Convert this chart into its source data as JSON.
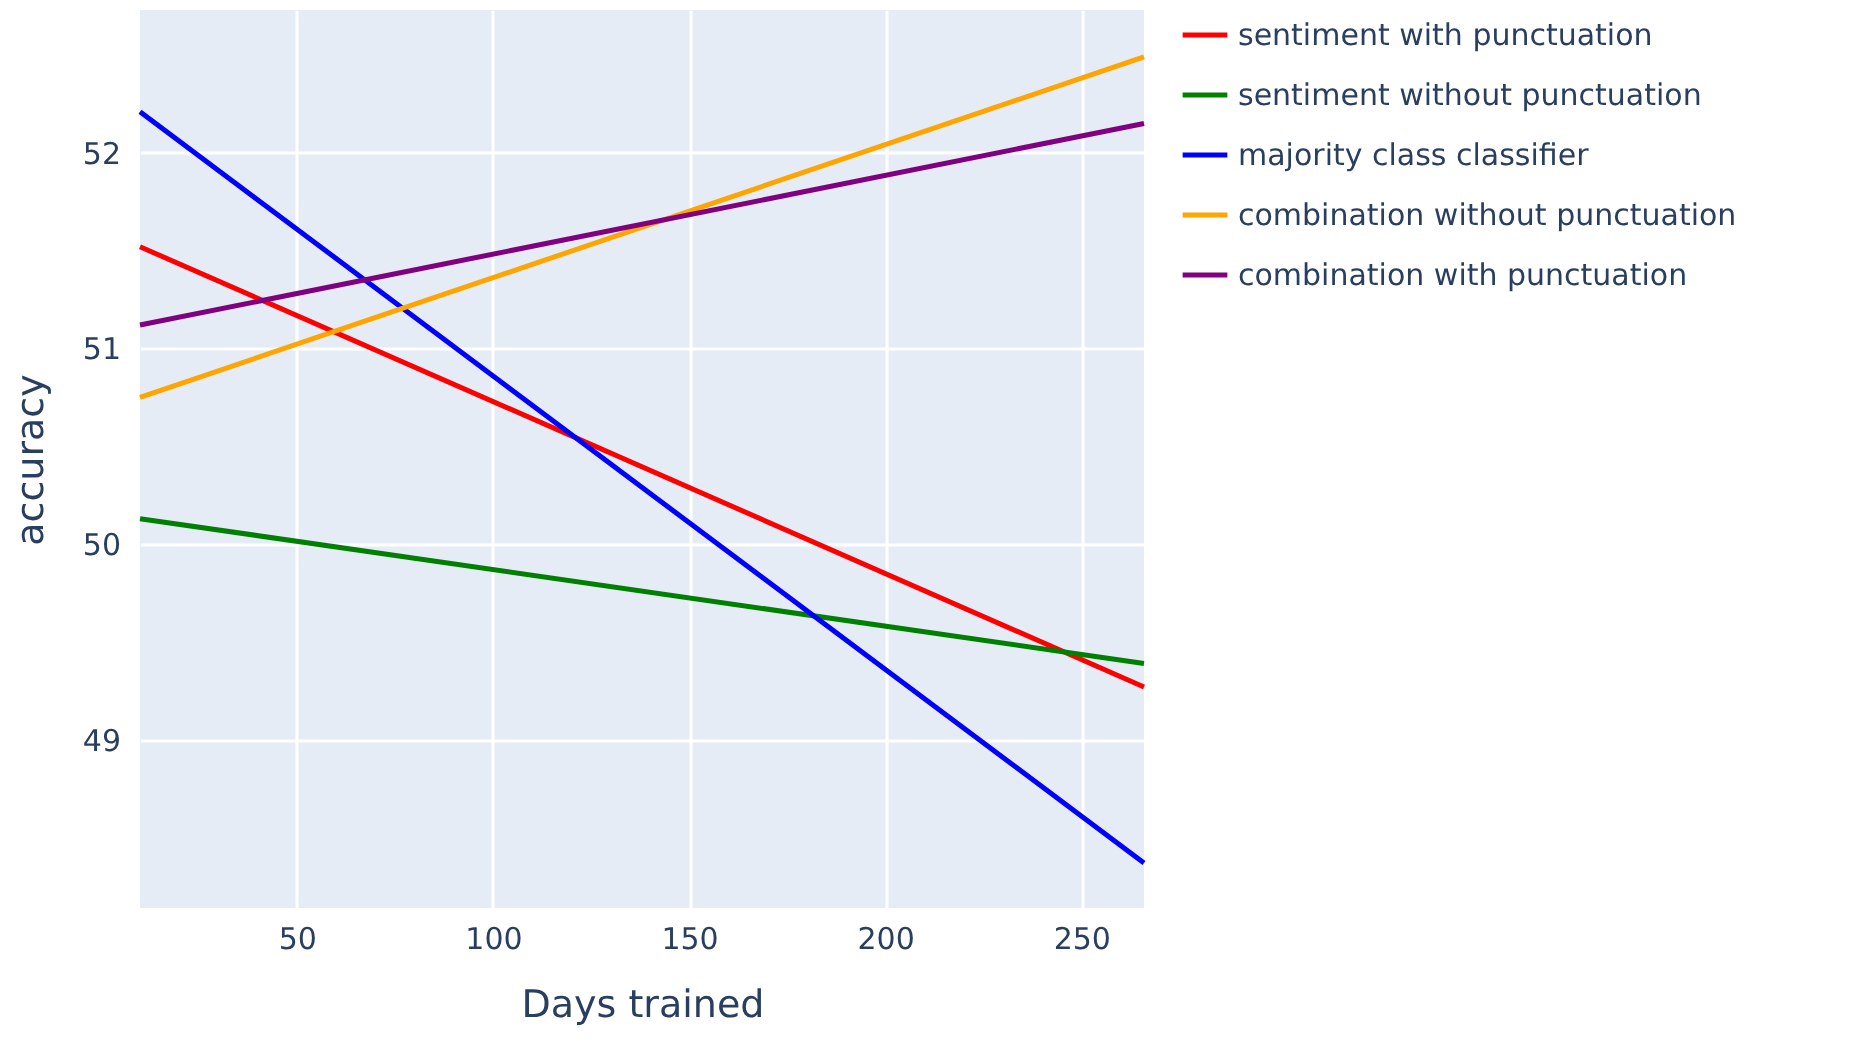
{
  "chart_data": {
    "type": "line",
    "xlabel": "Days trained",
    "ylabel": "accuracy",
    "x": [
      10,
      266
    ],
    "xlim": [
      10,
      266
    ],
    "xticks": [
      50,
      100,
      150,
      200,
      250
    ],
    "ylim": [
      48.14,
      52.73
    ],
    "yticks": [
      49,
      50,
      51,
      52
    ],
    "grid": true,
    "legend": "top right",
    "line_style": "solid",
    "marker": "none",
    "series": [
      {
        "name": "sentiment with punctuation",
        "color": "#ff0000",
        "values": [
          51.52,
          49.27
        ]
      },
      {
        "name": "sentiment without punctuation",
        "color": "#008000",
        "values": [
          50.13,
          49.39
        ]
      },
      {
        "name": "majority class classifier",
        "color": "#0000ff",
        "values": [
          52.21,
          48.37
        ]
      },
      {
        "name": "combination without punctuation",
        "color": "#ffa500",
        "values": [
          50.75,
          52.49
        ]
      },
      {
        "name": "combination with punctuation",
        "color": "#800080",
        "values": [
          51.12,
          52.15
        ]
      }
    ]
  }
}
